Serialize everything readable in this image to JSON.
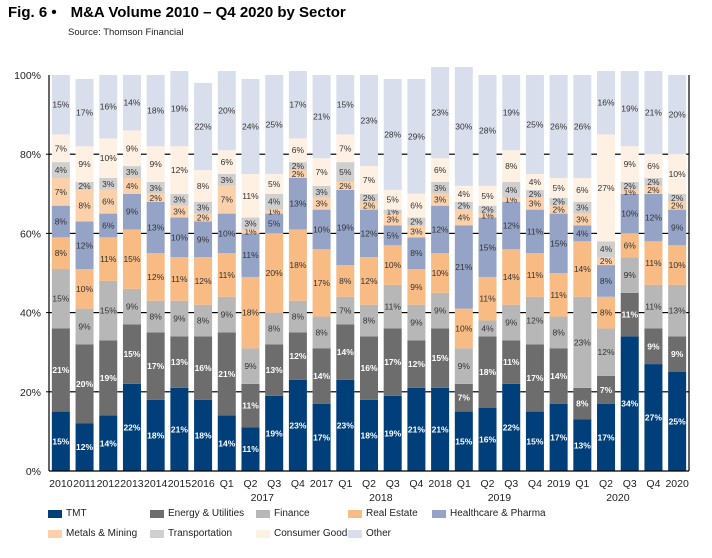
{
  "figure": {
    "number": "Fig. 6 •",
    "title": "M&A Volume 2010 – Q4 2020 by Sector",
    "source": "Source: Thomson Financial"
  },
  "chart_data": {
    "type": "bar",
    "stacked": true,
    "normalized": true,
    "title": "M&A Volume 2010 – Q4 2020 by Sector",
    "xlabel": "",
    "ylabel": "",
    "ylim": [
      0,
      100
    ],
    "yticks": [
      "0%",
      "20%",
      "40%",
      "60%",
      "80%",
      "100%"
    ],
    "grid": false,
    "legend_position": "bottom",
    "categories": [
      "2010",
      "2011",
      "2012",
      "2013",
      "2014",
      "2015",
      "2016",
      "Q1 2017",
      "Q2 2017",
      "Q3 2017",
      "Q4 2017",
      "2017",
      "Q1 2018",
      "Q2 2018",
      "Q3 2018",
      "Q4 2018",
      "2018",
      "Q1 2019",
      "Q2 2019",
      "Q3 2019",
      "Q4 2019",
      "2019",
      "Q1 2020",
      "Q2 2020",
      "Q3 2020",
      "Q4 2020",
      "2020"
    ],
    "tick_labels": [
      "2010",
      "2011",
      "2012",
      "2013",
      "2014",
      "2015",
      "2016",
      "Q1",
      "Q2",
      "Q3",
      "Q4",
      "2017",
      "Q1",
      "Q2",
      "Q3",
      "Q4",
      "2018",
      "Q1",
      "Q2",
      "Q3",
      "Q4",
      "2019",
      "Q1",
      "Q2",
      "Q3",
      "Q4",
      "2020"
    ],
    "group_labels": [
      {
        "label": "2017",
        "under_index": 8.5
      },
      {
        "label": "2018",
        "under_index": 13.5
      },
      {
        "label": "2019",
        "under_index": 18.5
      },
      {
        "label": "2020",
        "under_index": 23.5
      }
    ],
    "series": [
      {
        "name": "TMT",
        "color": "#003f7a",
        "label_color": "#ffffff",
        "values": [
          15,
          12,
          14,
          22,
          18,
          21,
          18,
          14,
          11,
          19,
          23,
          17,
          23,
          18,
          19,
          21,
          21,
          15,
          16,
          22,
          15,
          17,
          13,
          17,
          34,
          27,
          25
        ]
      },
      {
        "name": "Energy & Utilities",
        "color": "#6d6d6d",
        "label_color": "#ffffff",
        "values": [
          21,
          20,
          19,
          15,
          17,
          13,
          16,
          21,
          11,
          13,
          12,
          14,
          14,
          16,
          17,
          12,
          15,
          7,
          18,
          11,
          17,
          14,
          8,
          7,
          11,
          9,
          9
        ]
      },
      {
        "name": "Finance",
        "color": "#b7b7b7",
        "label_color": "#333333",
        "values": [
          15,
          9,
          15,
          9,
          8,
          9,
          8,
          9,
          9,
          8,
          8,
          8,
          7,
          8,
          11,
          9,
          9,
          9,
          4,
          9,
          12,
          8,
          23,
          12,
          9,
          11,
          13
        ]
      },
      {
        "name": "Real Estate",
        "color": "#f8bb84",
        "label_color": "#333333",
        "values": [
          8,
          10,
          11,
          15,
          12,
          11,
          12,
          11,
          18,
          20,
          18,
          17,
          8,
          12,
          10,
          9,
          10,
          10,
          11,
          14,
          11,
          11,
          14,
          8,
          6,
          11,
          10
        ]
      },
      {
        "name": "Healthcare & Pharma",
        "color": "#95a3c6",
        "label_color": "#333333",
        "values": [
          8,
          12,
          6,
          9,
          13,
          10,
          9,
          10,
          11,
          5,
          13,
          10,
          19,
          12,
          5,
          8,
          12,
          21,
          15,
          12,
          11,
          15,
          4,
          8,
          10,
          12,
          9
        ]
      },
      {
        "name": "Metals & Mining",
        "color": "#fbd1ab",
        "label_color": "#333333",
        "values": [
          7,
          8,
          6,
          4,
          2,
          3,
          2,
          7,
          1,
          1,
          2,
          3,
          2,
          2,
          3,
          3,
          3,
          4,
          1,
          1,
          3,
          2,
          3,
          2,
          1,
          2,
          2
        ]
      },
      {
        "name": "Transportation",
        "color": "#cfcfcf",
        "label_color": "#333333",
        "values": [
          4,
          2,
          3,
          3,
          3,
          3,
          3,
          3,
          3,
          4,
          2,
          3,
          5,
          2,
          1,
          2,
          3,
          2,
          2,
          4,
          2,
          2,
          3,
          4,
          2,
          2,
          2
        ]
      },
      {
        "name": "Consumer Goods",
        "color": "#fef0e3",
        "label_color": "#333333",
        "values": [
          7,
          9,
          10,
          9,
          9,
          12,
          8,
          6,
          11,
          5,
          6,
          7,
          7,
          7,
          5,
          6,
          6,
          4,
          5,
          8,
          4,
          5,
          6,
          27,
          9,
          6,
          10
        ]
      },
      {
        "name": "Other",
        "color": "#d9deec",
        "label_color": "#333333",
        "values": [
          15,
          17,
          16,
          14,
          18,
          19,
          22,
          20,
          24,
          25,
          17,
          21,
          15,
          23,
          28,
          29,
          23,
          30,
          28,
          19,
          25,
          26,
          26,
          16,
          19,
          21,
          20
        ]
      }
    ]
  }
}
